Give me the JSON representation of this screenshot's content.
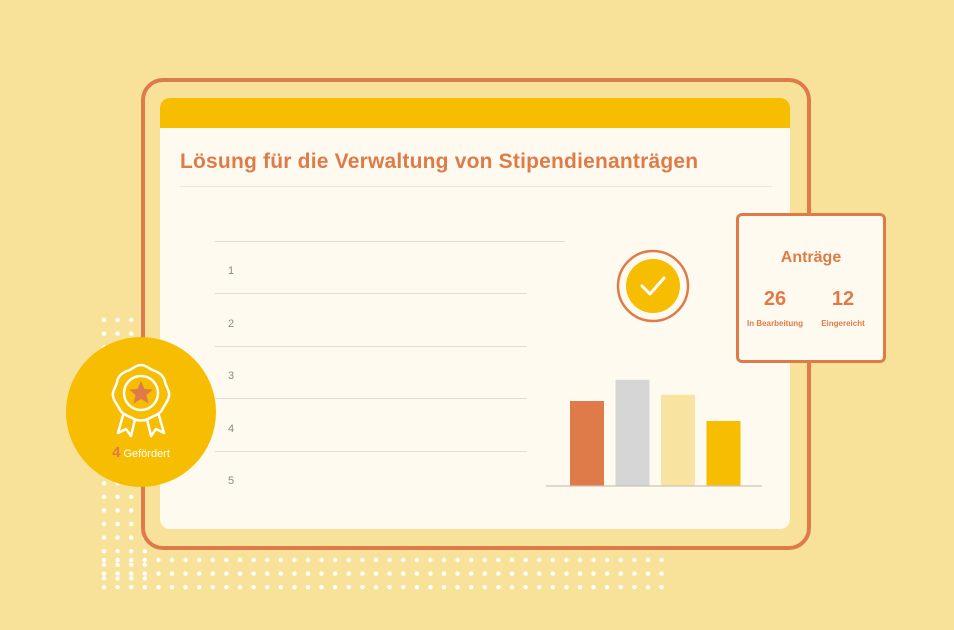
{
  "page": {
    "title": "Lösung für die Verwaltung von Stipendienanträgen"
  },
  "table": {
    "rows": [
      "1",
      "2",
      "3",
      "4",
      "5"
    ]
  },
  "applications_card": {
    "title": "Anträge",
    "stats": [
      {
        "value": "26",
        "label": "In Bearbeitung"
      },
      {
        "value": "12",
        "label": "Eingereicht"
      }
    ]
  },
  "badge": {
    "count": "4",
    "label": "Gefördert",
    "icon": "award-ribbon-star-icon"
  },
  "status_icon": "checkmark-circle-icon",
  "colors": {
    "background": "#f8e29a",
    "accent_orange": "#df7b48",
    "accent_yellow": "#f7bd00",
    "gray": "#d6d6d6",
    "pale_yellow": "#f9e3a1",
    "screen": "#fffaf0"
  },
  "chart_data": {
    "type": "bar",
    "categories": [
      "",
      "",
      "",
      ""
    ],
    "values": [
      68,
      85,
      73,
      52
    ],
    "colors": [
      "#df7b48",
      "#d6d6d6",
      "#f9e3a1",
      "#f7bd00"
    ],
    "ylim": [
      0,
      100
    ],
    "grid": false,
    "legend": "none"
  }
}
